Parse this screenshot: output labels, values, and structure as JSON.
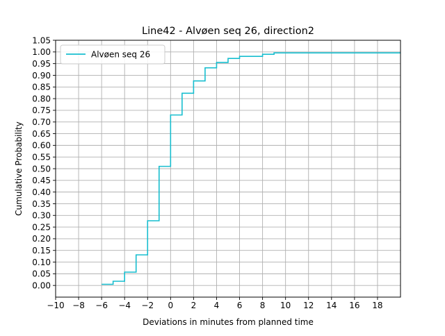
{
  "chart_data": {
    "type": "line",
    "step": true,
    "title": "Line42 - Alvøen seq 26, direction2",
    "xlabel": "Deviations in minutes from planned time",
    "ylabel": "Cumulative Probability",
    "xlim": [
      -10,
      20
    ],
    "ylim": [
      -0.05,
      1.05
    ],
    "xticks": [
      -10,
      -8,
      -6,
      -4,
      -2,
      0,
      2,
      4,
      6,
      8,
      10,
      12,
      14,
      16,
      18
    ],
    "xtick_labels": [
      "−10",
      "−8",
      "−6",
      "−4",
      "−2",
      "0",
      "2",
      "4",
      "6",
      "8",
      "10",
      "12",
      "14",
      "16",
      "18"
    ],
    "yticks": [
      0.0,
      0.05,
      0.1,
      0.15,
      0.2,
      0.25,
      0.3,
      0.35,
      0.4,
      0.45,
      0.5,
      0.55,
      0.6,
      0.65,
      0.7,
      0.75,
      0.8,
      0.85,
      0.9,
      0.95,
      1.0,
      1.05
    ],
    "ytick_labels": [
      "0.00",
      "0.05",
      "0.10",
      "0.15",
      "0.20",
      "0.25",
      "0.30",
      "0.35",
      "0.40",
      "0.45",
      "0.50",
      "0.55",
      "0.60",
      "0.65",
      "0.70",
      "0.75",
      "0.80",
      "0.85",
      "0.90",
      "0.95",
      "1.00",
      "1.05"
    ],
    "grid": true,
    "legend_position": "upper-left",
    "series": [
      {
        "name": "Alvøen seq 26",
        "color": "#17becf",
        "x": [
          -6,
          -5,
          -4,
          -3,
          -2,
          -1,
          0,
          1,
          2,
          3,
          4,
          5,
          6,
          7,
          8,
          9,
          10,
          20
        ],
        "y": [
          0.005,
          0.018,
          0.057,
          0.131,
          0.277,
          0.51,
          0.73,
          0.823,
          0.876,
          0.932,
          0.955,
          0.972,
          0.981,
          0.981,
          0.99,
          0.996,
          0.996,
          0.996
        ]
      }
    ]
  }
}
